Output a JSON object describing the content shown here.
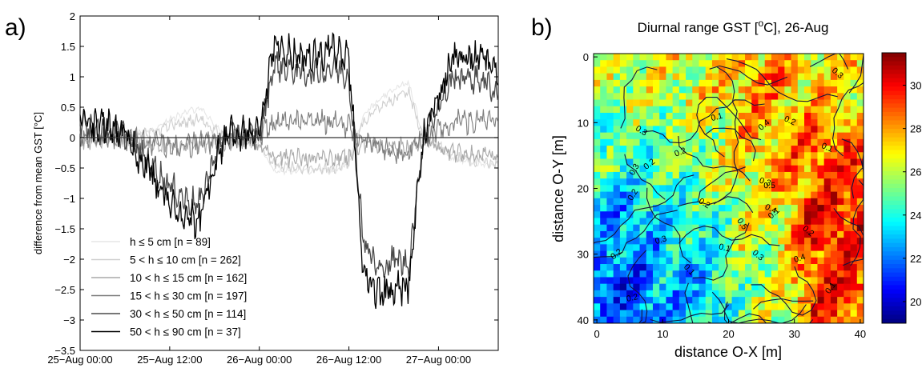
{
  "panel_a": {
    "letter": "a)",
    "ylabel": "difference from mean GST [°C]",
    "xticks": [
      "25−Aug 00:00",
      "25−Aug 12:00",
      "26−Aug 00:00",
      "26−Aug 12:00",
      "27−Aug 00:00"
    ],
    "yticks": [
      "2",
      "1.5",
      "1",
      "0.5",
      "0",
      "−0.5",
      "−1",
      "−1.5",
      "−2",
      "−2.5",
      "−3",
      "−3.5"
    ]
  },
  "panel_b": {
    "letter": "b)",
    "title": "Diurnal range GST [",
    "title_sup": "o",
    "title_rest": "C], 26-Aug",
    "xlabel": "distance O-X [m]",
    "ylabel": "distance O-Y [m]",
    "xticks": [
      "0",
      "10",
      "20",
      "30",
      "40"
    ],
    "yticks": [
      "0",
      "10",
      "20",
      "30",
      "40"
    ],
    "colorbar_ticks": [
      "30",
      "28",
      "26",
      "24",
      "22",
      "20"
    ],
    "contour_labels": [
      "0.2",
      "0.1",
      "0.2",
      "0.2",
      "0.1",
      "0.3",
      "0.1",
      "0.2",
      "0.1",
      "0.1",
      "0.4",
      "0.5",
      "0.3",
      "0.5",
      "0.2",
      "0.3",
      "0.4",
      "0.4",
      "0.3",
      "0.1",
      "0.3",
      "0.2",
      "0.2",
      "0.2",
      "0.3"
    ]
  },
  "chart_data": [
    {
      "type": "line",
      "ylabel": "difference from mean GST [°C]",
      "xlabel": "",
      "x_range": [
        "25-Aug 00:00",
        "27-Aug 08:00"
      ],
      "ylim": [
        -3.5,
        2
      ],
      "reference_line": 0,
      "legend_placement": "bottom-left",
      "series": [
        {
          "name": "h ≤ 5 cm [n = 89]",
          "color": "#e6e6e6",
          "x_hours": [
            0,
            6,
            10,
            12,
            16,
            20,
            24,
            26,
            30,
            34,
            36,
            38,
            42,
            44,
            46,
            50,
            54,
            56
          ],
          "values": [
            0.05,
            0.0,
            0.15,
            0.3,
            0.5,
            -0.05,
            -0.1,
            -0.55,
            -0.55,
            -0.55,
            -0.45,
            0.4,
            0.8,
            0.9,
            0.0,
            -0.35,
            -0.45,
            -0.45
          ]
        },
        {
          "name": "5 < h ≤ 10 cm [n = 262]",
          "color": "#cfcfcf",
          "x_hours": [
            0,
            6,
            10,
            12,
            16,
            20,
            24,
            26,
            30,
            34,
            36,
            38,
            42,
            44,
            46,
            50,
            54,
            56
          ],
          "values": [
            0.0,
            -0.05,
            0.1,
            0.2,
            0.3,
            -0.05,
            -0.1,
            -0.45,
            -0.5,
            -0.5,
            -0.4,
            0.3,
            0.65,
            0.75,
            0.0,
            -0.3,
            -0.4,
            -0.4
          ]
        },
        {
          "name": "10 < h ≤ 15 cm [n = 162]",
          "color": "#a8a8a8",
          "x_hours": [
            0,
            6,
            10,
            12,
            16,
            20,
            24,
            26,
            30,
            34,
            36,
            38,
            42,
            44,
            46,
            50,
            54,
            56
          ],
          "values": [
            -0.05,
            -0.05,
            -0.1,
            -0.15,
            -0.1,
            -0.05,
            -0.1,
            -0.3,
            -0.35,
            -0.35,
            -0.3,
            -0.1,
            -0.15,
            -0.15,
            -0.05,
            -0.25,
            -0.3,
            -0.3
          ]
        },
        {
          "name": "15 < h ≤ 30 cm [n = 197]",
          "color": "#7d7d7d",
          "x_hours": [
            0,
            6,
            10,
            12,
            16,
            20,
            24,
            26,
            30,
            34,
            36,
            38,
            42,
            44,
            46,
            50,
            54,
            56
          ],
          "values": [
            0.05,
            0.0,
            -0.1,
            -0.15,
            -0.1,
            0.0,
            0.05,
            0.25,
            0.3,
            0.25,
            0.2,
            -0.1,
            -0.2,
            -0.25,
            0.0,
            0.25,
            0.3,
            0.25
          ]
        },
        {
          "name": "30 < h ≤ 50 cm [n = 114]",
          "color": "#4a4a4a",
          "x_hours": [
            0,
            6,
            10,
            12,
            14,
            16,
            18,
            20,
            24,
            26,
            30,
            34,
            36,
            38,
            40,
            42,
            44,
            46,
            50,
            54,
            56
          ],
          "values": [
            0.2,
            0.05,
            -0.5,
            -0.8,
            -1.0,
            -1.1,
            -0.3,
            0.1,
            0.0,
            1.2,
            1.05,
            1.15,
            1.0,
            -1.7,
            -2.2,
            -2.0,
            -2.1,
            0.0,
            1.0,
            0.95,
            0.7
          ]
        },
        {
          "name": "50 < h ≤ 90 cm [n = 37]",
          "color": "#000000",
          "x_hours": [
            0,
            6,
            10,
            12,
            14,
            16,
            18,
            20,
            24,
            26,
            30,
            34,
            36,
            38,
            40,
            42,
            44,
            46,
            50,
            54,
            56
          ],
          "values": [
            0.3,
            0.05,
            -0.7,
            -1.1,
            -1.3,
            -1.4,
            -0.4,
            0.1,
            0.0,
            1.5,
            1.3,
            1.45,
            1.3,
            -2.3,
            -2.6,
            -2.5,
            -2.45,
            0.0,
            1.35,
            1.3,
            1.0
          ]
        }
      ]
    },
    {
      "type": "heatmap",
      "title": "Diurnal range GST [oC], 26-Aug",
      "xlabel": "distance O-X [m]",
      "ylabel": "distance O-Y [m]",
      "x_range": [
        0,
        41
      ],
      "y_range": [
        0,
        41
      ],
      "y_axis_direction": "downward",
      "colorbar_range": [
        19,
        31.5
      ],
      "colorbar_ticks": [
        20,
        22,
        24,
        26,
        28,
        30
      ],
      "description_of_values": "values are lowest (about 20) in the lower-left and left side, highest (about 30-31) toward the right side; contour lines of a second field with labels 0.1 to 0.5 overlay the map",
      "regional_means": [
        {
          "x_from": 0,
          "x_to": 10,
          "y_from": 0,
          "y_to": 10,
          "value": 26
        },
        {
          "x_from": 10,
          "x_to": 20,
          "y_from": 0,
          "y_to": 10,
          "value": 26.5
        },
        {
          "x_from": 20,
          "x_to": 30,
          "y_from": 0,
          "y_to": 10,
          "value": 28
        },
        {
          "x_from": 30,
          "x_to": 41,
          "y_from": 0,
          "y_to": 10,
          "value": 27
        },
        {
          "x_from": 0,
          "x_to": 10,
          "y_from": 10,
          "y_to": 20,
          "value": 24.5
        },
        {
          "x_from": 10,
          "x_to": 20,
          "y_from": 10,
          "y_to": 20,
          "value": 25.5
        },
        {
          "x_from": 20,
          "x_to": 30,
          "y_from": 10,
          "y_to": 20,
          "value": 27.5
        },
        {
          "x_from": 30,
          "x_to": 41,
          "y_from": 10,
          "y_to": 20,
          "value": 29
        },
        {
          "x_from": 0,
          "x_to": 10,
          "y_from": 20,
          "y_to": 30,
          "value": 22.5
        },
        {
          "x_from": 10,
          "x_to": 20,
          "y_from": 20,
          "y_to": 30,
          "value": 24
        },
        {
          "x_from": 20,
          "x_to": 30,
          "y_from": 20,
          "y_to": 30,
          "value": 26.5
        },
        {
          "x_from": 30,
          "x_to": 41,
          "y_from": 20,
          "y_to": 30,
          "value": 30
        },
        {
          "x_from": 0,
          "x_to": 10,
          "y_from": 30,
          "y_to": 41,
          "value": 21.5
        },
        {
          "x_from": 10,
          "x_to": 20,
          "y_from": 30,
          "y_to": 41,
          "value": 23
        },
        {
          "x_from": 20,
          "x_to": 30,
          "y_from": 30,
          "y_to": 41,
          "value": 25.5
        },
        {
          "x_from": 30,
          "x_to": 41,
          "y_from": 30,
          "y_to": 41,
          "value": 29.5
        }
      ]
    }
  ]
}
